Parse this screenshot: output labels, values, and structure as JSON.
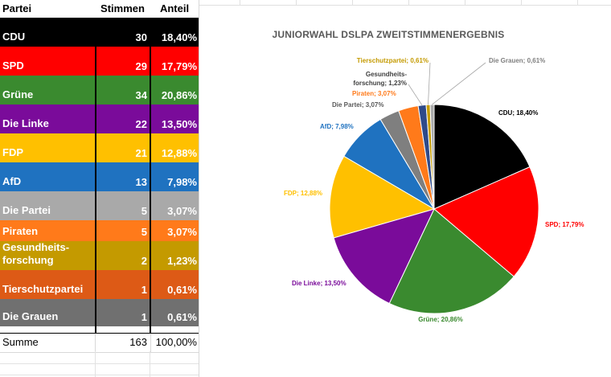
{
  "table": {
    "headers": [
      "Partei",
      "Stimmen",
      "Anteil"
    ],
    "rows": [
      {
        "party": "CDU",
        "votes": "30",
        "share": "18,40%",
        "color": "#000000",
        "height": 36
      },
      {
        "party": "SPD",
        "votes": "29",
        "share": "17,79%",
        "color": "#ff0000",
        "height": 36
      },
      {
        "party": "Grüne",
        "votes": "34",
        "share": "20,86%",
        "color": "#3a8a2f",
        "height": 36
      },
      {
        "party": "Die Linke",
        "votes": "22",
        "share": "13,50%",
        "color": "#7a0b9a",
        "height": 36
      },
      {
        "party": "FDP",
        "votes": "21",
        "share": "12,88%",
        "color": "#ffc000",
        "height": 36
      },
      {
        "party": "AfD",
        "votes": "13",
        "share": "7,98%",
        "color": "#1f72c0",
        "height": 36
      },
      {
        "party": "Die Partei",
        "votes": "5",
        "share": "3,07%",
        "color": "#a9a9a9",
        "height": 36
      },
      {
        "party": "Piraten",
        "votes": "5",
        "share": "3,07%",
        "color": "#ff7a1a",
        "height": 26
      },
      {
        "party": "Gesundheits-\nforschung",
        "votes": "2",
        "share": "1,23%",
        "color": "#c49a00",
        "height": 36
      },
      {
        "party": "Tierschutzpartei",
        "votes": "1",
        "share": "0,61%",
        "color": "#dd5a16",
        "height": 36
      },
      {
        "party": "Die Grauen",
        "votes": "1",
        "share": "0,61%",
        "color": "#707070",
        "height": 34
      }
    ],
    "sum": {
      "label": "Summe",
      "votes": "163",
      "share": "100,00%"
    }
  },
  "chart_data": {
    "type": "pie",
    "title": "JUNIORWAHL DSLPA ZWEITSTIMMENERGEBNIS",
    "categories": [
      "CDU",
      "SPD",
      "Grüne",
      "Die Linke",
      "FDP",
      "AfD",
      "Die Partei",
      "Piraten",
      "Gesundheits-forschung",
      "Tierschutzpartei",
      "Die Grauen"
    ],
    "values": [
      18.4,
      17.79,
      20.86,
      13.5,
      12.88,
      7.98,
      3.07,
      3.07,
      1.23,
      0.61,
      0.61
    ],
    "labels": [
      "CDU; 18,40%",
      "SPD; 17,79%",
      "Grüne; 20,86%",
      "Die Linke; 13,50%",
      "FDP; 12,88%",
      "AfD; 7,98%",
      "Die Partei; 3,07%",
      "Piraten; 3,07%",
      "Gesundheits-forschung; 1,23%",
      "Tierschutzpartei; 0,61%",
      "Die Grauen; 0,61%"
    ],
    "colors": [
      "#000000",
      "#ff0000",
      "#3a8a2f",
      "#7a0b9a",
      "#ffc000",
      "#1f72c0",
      "#7f7f7f",
      "#ff7a1a",
      "#2e4a8a",
      "#c49a00",
      "#a9a9a9"
    ],
    "label_colors": [
      "#000000",
      "#ff0000",
      "#3a8a2f",
      "#7a0b9a",
      "#ffc000",
      "#1f72c0",
      "#595959",
      "#ff7a1a",
      "#404040",
      "#c49a00",
      "#7f7f7f"
    ]
  }
}
